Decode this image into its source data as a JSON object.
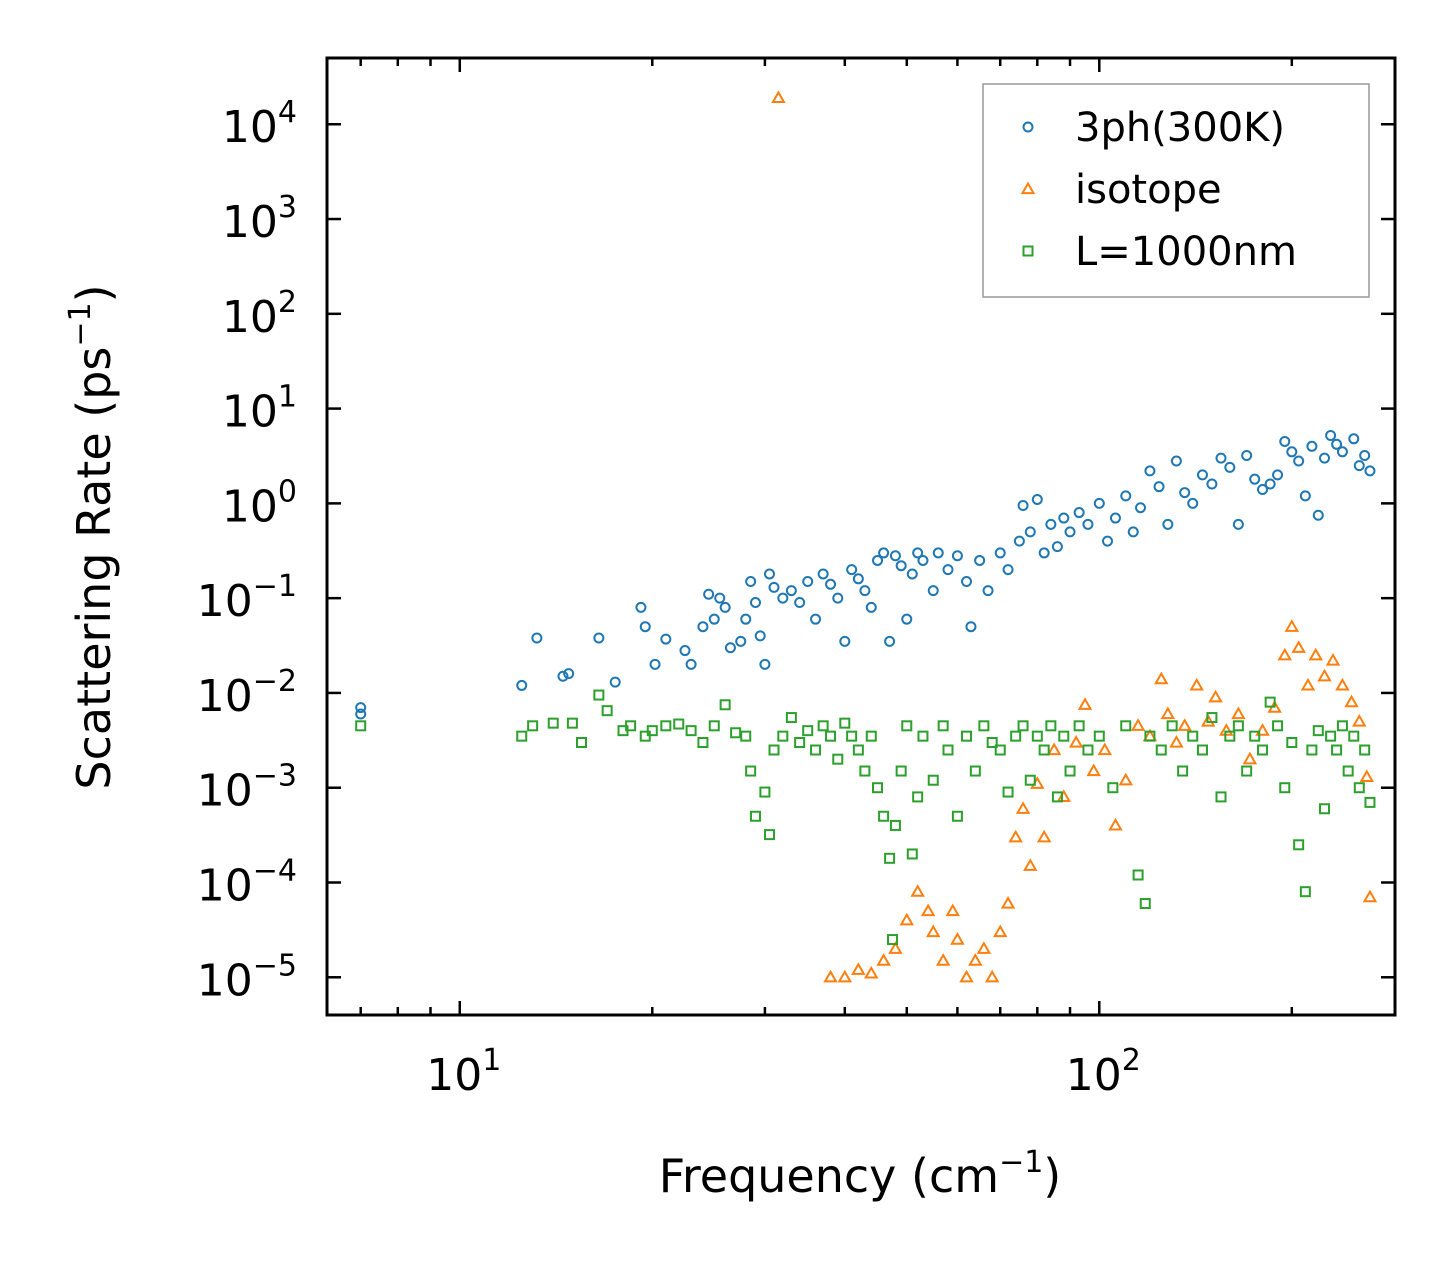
{
  "chart_data": {
    "type": "scatter",
    "xscale": "log",
    "yscale": "log",
    "xlabel": "Frequency (cm",
    "xlabel_sup": "−1",
    "xlabel_end": ")",
    "ylabel": "Scattering Rate (ps",
    "ylabel_sup": "−1",
    "ylabel_end": ")",
    "xlim": [
      6.2,
      290
    ],
    "ylim": [
      4e-06,
      50000
    ],
    "x_ticks": [
      {
        "value": 10,
        "base": "10",
        "exp": "1"
      },
      {
        "value": 100,
        "base": "10",
        "exp": "2"
      }
    ],
    "y_ticks": [
      {
        "value": 1e-05,
        "base": "10",
        "exp": "−5"
      },
      {
        "value": 0.0001,
        "base": "10",
        "exp": "−4"
      },
      {
        "value": 0.001,
        "base": "10",
        "exp": "−3"
      },
      {
        "value": 0.01,
        "base": "10",
        "exp": "−2"
      },
      {
        "value": 0.1,
        "base": "10",
        "exp": "−1"
      },
      {
        "value": 1,
        "base": "10",
        "exp": "0"
      },
      {
        "value": 10,
        "base": "10",
        "exp": "1"
      },
      {
        "value": 100,
        "base": "10",
        "exp": "2"
      },
      {
        "value": 1000,
        "base": "10",
        "exp": "3"
      },
      {
        "value": 10000,
        "base": "10",
        "exp": "4"
      }
    ],
    "legend_position": "top-right",
    "series": [
      {
        "name": "3ph(300K)",
        "marker": "circle",
        "color": "#1f77b4",
        "points": [
          [
            7,
            0.007
          ],
          [
            7,
            0.006
          ],
          [
            12.5,
            0.012
          ],
          [
            13.2,
            0.038
          ],
          [
            14.5,
            0.015
          ],
          [
            14.8,
            0.016
          ],
          [
            16.5,
            0.038
          ],
          [
            17.5,
            0.013
          ],
          [
            19.2,
            0.08
          ],
          [
            19.5,
            0.05
          ],
          [
            20.2,
            0.02
          ],
          [
            21,
            0.037
          ],
          [
            22.5,
            0.028
          ],
          [
            23,
            0.02
          ],
          [
            24,
            0.05
          ],
          [
            24.5,
            0.11
          ],
          [
            25,
            0.06
          ],
          [
            25.5,
            0.1
          ],
          [
            26,
            0.08
          ],
          [
            26.5,
            0.03
          ],
          [
            27.5,
            0.035
          ],
          [
            28,
            0.06
          ],
          [
            28.5,
            0.15
          ],
          [
            29,
            0.09
          ],
          [
            29.5,
            0.04
          ],
          [
            30,
            0.02
          ],
          [
            30.5,
            0.18
          ],
          [
            31,
            0.13
          ],
          [
            32,
            0.1
          ],
          [
            33,
            0.12
          ],
          [
            34,
            0.09
          ],
          [
            35,
            0.15
          ],
          [
            36,
            0.06
          ],
          [
            37,
            0.18
          ],
          [
            38,
            0.14
          ],
          [
            39,
            0.1
          ],
          [
            40,
            0.035
          ],
          [
            41,
            0.2
          ],
          [
            42,
            0.16
          ],
          [
            43,
            0.12
          ],
          [
            44,
            0.08
          ],
          [
            45,
            0.25
          ],
          [
            46,
            0.3
          ],
          [
            47,
            0.035
          ],
          [
            48,
            0.28
          ],
          [
            49,
            0.22
          ],
          [
            50,
            0.06
          ],
          [
            51,
            0.18
          ],
          [
            52,
            0.3
          ],
          [
            53,
            0.25
          ],
          [
            55,
            0.12
          ],
          [
            56,
            0.3
          ],
          [
            58,
            0.2
          ],
          [
            60,
            0.28
          ],
          [
            62,
            0.15
          ],
          [
            63,
            0.05
          ],
          [
            65,
            0.25
          ],
          [
            67,
            0.12
          ],
          [
            70,
            0.3
          ],
          [
            72,
            0.2
          ],
          [
            75,
            0.4
          ],
          [
            76,
            0.95
          ],
          [
            78,
            0.5
          ],
          [
            80,
            1.1
          ],
          [
            82,
            0.3
          ],
          [
            84,
            0.6
          ],
          [
            86,
            0.35
          ],
          [
            88,
            0.7
          ],
          [
            90,
            0.5
          ],
          [
            93,
            0.8
          ],
          [
            96,
            0.6
          ],
          [
            100,
            1.0
          ],
          [
            103,
            0.4
          ],
          [
            106,
            0.7
          ],
          [
            110,
            1.2
          ],
          [
            113,
            0.5
          ],
          [
            116,
            0.9
          ],
          [
            120,
            2.2
          ],
          [
            124,
            1.5
          ],
          [
            128,
            0.6
          ],
          [
            132,
            2.8
          ],
          [
            136,
            1.3
          ],
          [
            140,
            1.0
          ],
          [
            145,
            2.0
          ],
          [
            150,
            1.6
          ],
          [
            155,
            3.0
          ],
          [
            160,
            2.4
          ],
          [
            165,
            0.6
          ],
          [
            170,
            3.2
          ],
          [
            175,
            1.8
          ],
          [
            180,
            1.4
          ],
          [
            185,
            1.6
          ],
          [
            190,
            2.0
          ],
          [
            195,
            4.5
          ],
          [
            200,
            3.5
          ],
          [
            205,
            2.8
          ],
          [
            210,
            1.2
          ],
          [
            215,
            4.0
          ],
          [
            220,
            0.75
          ],
          [
            225,
            3.0
          ],
          [
            230,
            5.2
          ],
          [
            235,
            4.2
          ],
          [
            240,
            3.5
          ],
          [
            250,
            4.8
          ],
          [
            255,
            2.5
          ],
          [
            260,
            3.2
          ],
          [
            265,
            2.2
          ]
        ]
      },
      {
        "name": "isotope",
        "marker": "triangle",
        "color": "#ff7f0e",
        "points": [
          [
            31.5,
            19000
          ],
          [
            38,
            1e-05
          ],
          [
            40,
            1e-05
          ],
          [
            42,
            1.2e-05
          ],
          [
            44,
            1.1e-05
          ],
          [
            46,
            1.5e-05
          ],
          [
            48,
            2e-05
          ],
          [
            50,
            4e-05
          ],
          [
            52,
            8e-05
          ],
          [
            54,
            5e-05
          ],
          [
            55,
            3e-05
          ],
          [
            57,
            1.5e-05
          ],
          [
            59,
            5e-05
          ],
          [
            60,
            2.5e-05
          ],
          [
            62,
            1e-05
          ],
          [
            64,
            1.5e-05
          ],
          [
            66,
            2e-05
          ],
          [
            68,
            1e-05
          ],
          [
            70,
            3e-05
          ],
          [
            72,
            6e-05
          ],
          [
            74,
            0.0003
          ],
          [
            76,
            0.0006
          ],
          [
            78,
            0.00015
          ],
          [
            80,
            0.0011
          ],
          [
            82,
            0.0003
          ],
          [
            85,
            0.0025
          ],
          [
            88,
            0.0008
          ],
          [
            92,
            0.003
          ],
          [
            95,
            0.0075
          ],
          [
            98,
            0.0015
          ],
          [
            102,
            0.0025
          ],
          [
            106,
            0.0004
          ],
          [
            110,
            0.0012
          ],
          [
            115,
            0.0045
          ],
          [
            120,
            0.0035
          ],
          [
            125,
            0.014
          ],
          [
            128,
            0.006
          ],
          [
            132,
            0.003
          ],
          [
            136,
            0.0045
          ],
          [
            142,
            0.012
          ],
          [
            148,
            0.005
          ],
          [
            152,
            0.009
          ],
          [
            158,
            0.004
          ],
          [
            165,
            0.006
          ],
          [
            172,
            0.002
          ],
          [
            180,
            0.004
          ],
          [
            188,
            0.007
          ],
          [
            195,
            0.025
          ],
          [
            200,
            0.05
          ],
          [
            205,
            0.03
          ],
          [
            212,
            0.012
          ],
          [
            218,
            0.025
          ],
          [
            225,
            0.015
          ],
          [
            232,
            0.022
          ],
          [
            240,
            0.012
          ],
          [
            248,
            0.008
          ],
          [
            255,
            0.005
          ],
          [
            262,
            0.0013
          ],
          [
            265,
            7e-05
          ]
        ]
      },
      {
        "name": "L=1000nm",
        "marker": "square",
        "color": "#2ca02c",
        "points": [
          [
            7,
            0.0045
          ],
          [
            12.5,
            0.0035
          ],
          [
            13,
            0.0045
          ],
          [
            14,
            0.0048
          ],
          [
            15,
            0.0048
          ],
          [
            15.5,
            0.003
          ],
          [
            16.5,
            0.0095
          ],
          [
            17,
            0.0065
          ],
          [
            18,
            0.004
          ],
          [
            18.5,
            0.0045
          ],
          [
            19.5,
            0.0035
          ],
          [
            20,
            0.004
          ],
          [
            21,
            0.0045
          ],
          [
            22,
            0.0047
          ],
          [
            23,
            0.004
          ],
          [
            24,
            0.003
          ],
          [
            25,
            0.0045
          ],
          [
            26,
            0.0075
          ],
          [
            27,
            0.0038
          ],
          [
            28,
            0.0035
          ],
          [
            28.5,
            0.0015
          ],
          [
            29,
            0.0005
          ],
          [
            30,
            0.0009
          ],
          [
            30.5,
            0.00032
          ],
          [
            31,
            0.0025
          ],
          [
            32,
            0.0035
          ],
          [
            33,
            0.0055
          ],
          [
            34,
            0.003
          ],
          [
            35,
            0.004
          ],
          [
            36,
            0.0025
          ],
          [
            37,
            0.0045
          ],
          [
            38,
            0.0035
          ],
          [
            39,
            0.002
          ],
          [
            40,
            0.0048
          ],
          [
            41,
            0.0035
          ],
          [
            42,
            0.0025
          ],
          [
            43,
            0.0015
          ],
          [
            44,
            0.0035
          ],
          [
            45,
            0.001
          ],
          [
            46,
            0.0005
          ],
          [
            47,
            0.00018
          ],
          [
            47.5,
            2.5e-05
          ],
          [
            48,
            0.0004
          ],
          [
            49,
            0.0015
          ],
          [
            50,
            0.0045
          ],
          [
            51,
            0.0002
          ],
          [
            52,
            0.0008
          ],
          [
            53,
            0.0035
          ],
          [
            55,
            0.0012
          ],
          [
            57,
            0.0045
          ],
          [
            58,
            0.0025
          ],
          [
            60,
            0.0005
          ],
          [
            62,
            0.0035
          ],
          [
            64,
            0.0015
          ],
          [
            66,
            0.0045
          ],
          [
            68,
            0.003
          ],
          [
            70,
            0.0025
          ],
          [
            72,
            0.0009
          ],
          [
            74,
            0.0035
          ],
          [
            76,
            0.0045
          ],
          [
            78,
            0.0012
          ],
          [
            80,
            0.0035
          ],
          [
            82,
            0.0025
          ],
          [
            84,
            0.0045
          ],
          [
            86,
            0.0008
          ],
          [
            88,
            0.0035
          ],
          [
            90,
            0.0015
          ],
          [
            93,
            0.0045
          ],
          [
            96,
            0.0025
          ],
          [
            100,
            0.0035
          ],
          [
            105,
            0.001
          ],
          [
            110,
            0.0045
          ],
          [
            115,
            0.00012
          ],
          [
            118,
            6e-05
          ],
          [
            120,
            0.0035
          ],
          [
            125,
            0.0025
          ],
          [
            130,
            0.0045
          ],
          [
            135,
            0.0015
          ],
          [
            140,
            0.0035
          ],
          [
            145,
            0.0025
          ],
          [
            150,
            0.0055
          ],
          [
            155,
            0.0008
          ],
          [
            160,
            0.0035
          ],
          [
            165,
            0.0045
          ],
          [
            170,
            0.0015
          ],
          [
            175,
            0.0035
          ],
          [
            180,
            0.0025
          ],
          [
            185,
            0.008
          ],
          [
            190,
            0.0045
          ],
          [
            195,
            0.001
          ],
          [
            200,
            0.003
          ],
          [
            205,
            0.00025
          ],
          [
            210,
            8e-05
          ],
          [
            215,
            0.0025
          ],
          [
            220,
            0.004
          ],
          [
            225,
            0.0006
          ],
          [
            230,
            0.0035
          ],
          [
            235,
            0.0025
          ],
          [
            240,
            0.0045
          ],
          [
            245,
            0.0015
          ],
          [
            250,
            0.0035
          ],
          [
            255,
            0.001
          ],
          [
            260,
            0.0025
          ],
          [
            265,
            0.0007
          ]
        ]
      }
    ]
  }
}
